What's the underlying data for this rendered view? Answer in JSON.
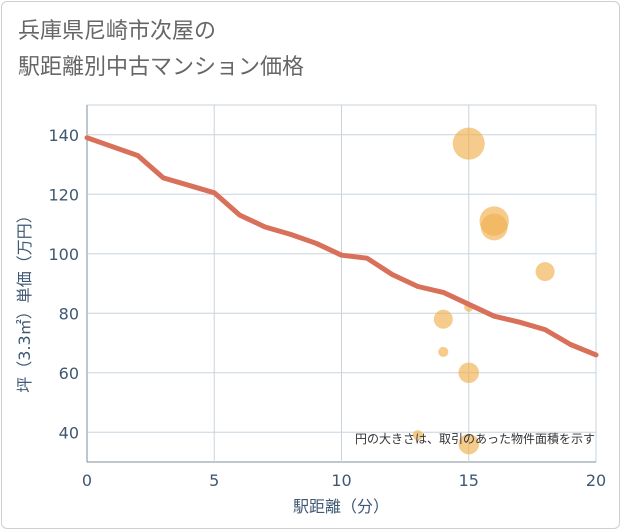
{
  "title_lines": [
    "兵庫県尼崎市次屋の",
    "駅距離別中古マンション価格"
  ],
  "chart_data": {
    "type": "scatter+line",
    "xlabel": "駅距離（分）",
    "ylabel": "坪（3.3㎡）単価（万円）",
    "xlim": [
      0,
      20
    ],
    "ylim": [
      30,
      150
    ],
    "x_ticks": [
      0,
      5,
      10,
      15,
      20
    ],
    "y_ticks": [
      40,
      60,
      80,
      100,
      120,
      140
    ],
    "grid": true,
    "annotation": "円の大きさは、取引のあった物件面積を示す",
    "colors": {
      "line": "#d9705a",
      "bubble": "#f0b04f",
      "grid": "#c8d3dd",
      "axis_text": "#3f5872"
    },
    "line": {
      "name": "trend",
      "x": [
        0,
        1,
        2,
        3,
        4,
        5,
        6,
        7,
        8,
        9,
        10,
        11,
        12,
        13,
        14,
        15,
        16,
        17,
        18,
        19,
        20
      ],
      "y": [
        139,
        136,
        133,
        125.5,
        123,
        120.5,
        113,
        109,
        106.5,
        103.5,
        99.5,
        98.5,
        93,
        89,
        87,
        83,
        79,
        77,
        74.5,
        69.5,
        66
      ]
    },
    "bubbles": [
      {
        "x": 15,
        "y": 137,
        "size": 5
      },
      {
        "x": 16,
        "y": 111,
        "size": 4.5
      },
      {
        "x": 16,
        "y": 109,
        "size": 4
      },
      {
        "x": 18,
        "y": 94,
        "size": 2.5
      },
      {
        "x": 15,
        "y": 82,
        "size": 0.6
      },
      {
        "x": 14,
        "y": 78,
        "size": 2.5
      },
      {
        "x": 14,
        "y": 67,
        "size": 0.8
      },
      {
        "x": 15,
        "y": 60,
        "size": 2.8
      },
      {
        "x": 13,
        "y": 39,
        "size": 0.8
      },
      {
        "x": 15,
        "y": 36,
        "size": 2.8
      }
    ]
  }
}
